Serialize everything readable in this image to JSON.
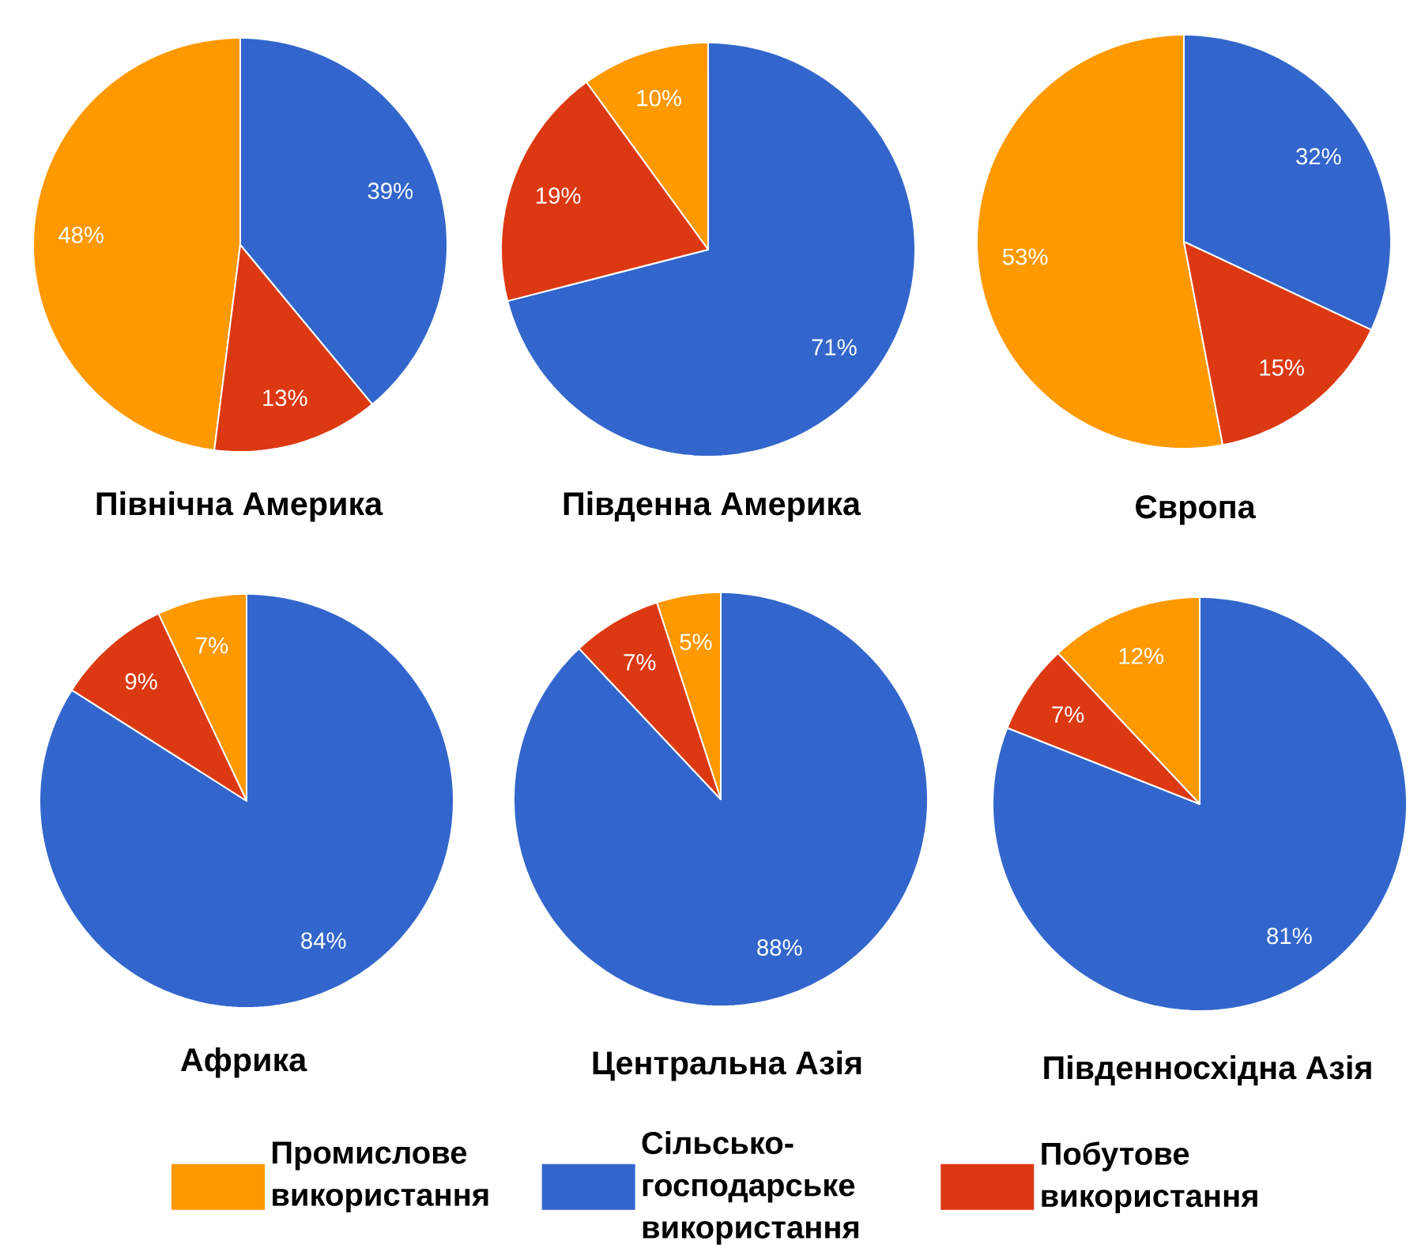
{
  "chart_data": [
    {
      "type": "pie",
      "title": "Північна Америка",
      "categories": [
        null,
        null,
        null
      ],
      "values": [
        48,
        39,
        13
      ],
      "value_labels": [
        "48%",
        "39%",
        "13%"
      ],
      "colors": [
        "#ff9900",
        "#3366cc",
        "#dc3912"
      ]
    },
    {
      "type": "pie",
      "title": "Південна Америка",
      "categories": [
        null,
        null,
        null
      ],
      "values": [
        10,
        71,
        19
      ],
      "value_labels": [
        "10%",
        "71%",
        "19%"
      ],
      "colors": [
        "#ff9900",
        "#3366cc",
        "#dc3912"
      ]
    },
    {
      "type": "pie",
      "title": "Європа",
      "categories": [
        null,
        null,
        null
      ],
      "values": [
        53,
        32,
        15
      ],
      "value_labels": [
        "53%",
        "32%",
        "15%"
      ],
      "colors": [
        "#ff9900",
        "#3366cc",
        "#dc3912"
      ]
    },
    {
      "type": "pie",
      "title": "Африка",
      "categories": [
        null,
        null,
        null
      ],
      "values": [
        7,
        84,
        9
      ],
      "value_labels": [
        "7%",
        "84%",
        "9%"
      ],
      "colors": [
        "#ff9900",
        "#3366cc",
        "#dc3912"
      ]
    },
    {
      "type": "pie",
      "title": "Центральна Азія",
      "categories": [
        "Промислове використання",
        "Сільсько-господарське використання",
        "Побутове використання"
      ],
      "values": [
        5,
        88,
        7
      ],
      "value_labels": [
        "5%",
        "88%",
        "7%"
      ],
      "colors": [
        "#ff9900",
        "#3366cc",
        "#dc3912"
      ],
      "legend": "bottom"
    },
    {
      "type": "pie",
      "title": "Південносхідна Азія",
      "categories": [
        null,
        null,
        null
      ],
      "values": [
        12,
        81,
        7
      ],
      "value_labels": [
        "12%",
        "81%",
        "7%"
      ],
      "colors": [
        "#ff9900",
        "#3366cc",
        "#dc3912"
      ]
    }
  ]
}
